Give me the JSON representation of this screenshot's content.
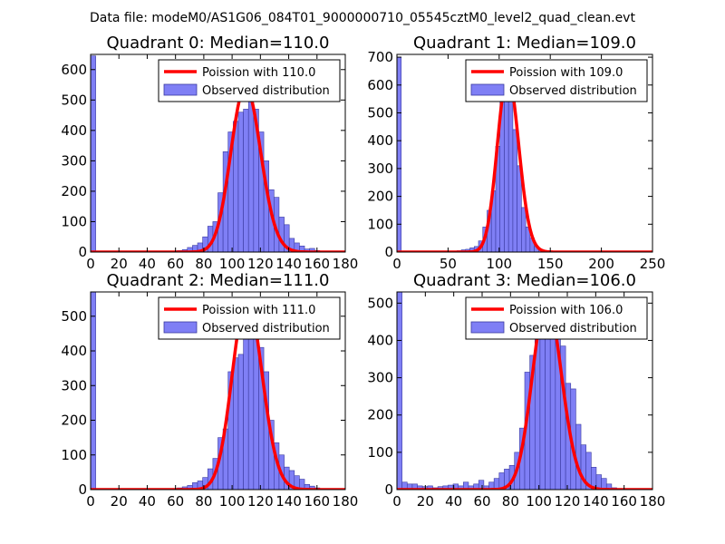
{
  "suptitle": "Data file: modeM0/AS1G06_084T01_9000000710_05545cztM0_level2_quad_clean.evt",
  "colors": {
    "bar": "#7f7ff5",
    "bar_edge": "#3a3aa0",
    "curve": "#ff0000",
    "axes": "#000000"
  },
  "chart_data": [
    {
      "type": "bar+line",
      "title": "Quadrant 0: Median=110.0",
      "median": 110.0,
      "xlim": [
        0,
        180
      ],
      "ylim": [
        0,
        650
      ],
      "xticks": [
        0,
        20,
        40,
        60,
        80,
        100,
        120,
        140,
        160,
        180
      ],
      "yticks": [
        0,
        100,
        200,
        300,
        400,
        500,
        600
      ],
      "bin_width": 3.6,
      "bins_x": [
        0,
        61.2,
        64.8,
        68.4,
        72,
        75.6,
        79.2,
        82.8,
        86.4,
        90,
        93.6,
        97.2,
        100.8,
        104.4,
        108,
        111.6,
        115.2,
        118.8,
        122.4,
        126,
        129.6,
        133.2,
        136.8,
        140.4,
        144,
        147.6,
        151.2,
        154.8,
        158.4,
        162
      ],
      "counts": [
        645,
        5,
        8,
        15,
        22,
        30,
        50,
        85,
        100,
        195,
        330,
        395,
        430,
        460,
        470,
        560,
        470,
        395,
        300,
        205,
        180,
        115,
        90,
        45,
        30,
        20,
        10,
        12,
        5,
        3
      ],
      "poisson_peak": 545,
      "legend": {
        "line": "Poission with 110.0",
        "bars": "Observed distribution"
      }
    },
    {
      "type": "bar+line",
      "title": "Quadrant 1: Median=109.0",
      "median": 109.0,
      "xlim": [
        0,
        250
      ],
      "ylim": [
        0,
        710
      ],
      "xticks": [
        0,
        50,
        100,
        150,
        200,
        250
      ],
      "yticks": [
        0,
        100,
        200,
        300,
        400,
        500,
        600,
        700
      ],
      "bin_width": 4.2,
      "bins_x": [
        0,
        58.8,
        63,
        67.2,
        71.4,
        75.6,
        79.8,
        84,
        88.2,
        92.4,
        96.6,
        100.8,
        105,
        109.2,
        113.4,
        117.6,
        121.8,
        126,
        130.2,
        134.4,
        138.6,
        142.8,
        147
      ],
      "counts": [
        700,
        5,
        8,
        10,
        15,
        20,
        40,
        90,
        150,
        220,
        380,
        590,
        610,
        545,
        440,
        310,
        160,
        90,
        50,
        20,
        10,
        5,
        3
      ],
      "poisson_peak": 635,
      "legend": {
        "line": "Poission with 109.0",
        "bars": "Observed distribution"
      }
    },
    {
      "type": "bar+line",
      "title": "Quadrant 2: Median=111.0",
      "median": 111.0,
      "xlim": [
        0,
        180
      ],
      "ylim": [
        0,
        570
      ],
      "xticks": [
        0,
        20,
        40,
        60,
        80,
        100,
        120,
        140,
        160,
        180
      ],
      "yticks": [
        0,
        100,
        200,
        300,
        400,
        500
      ],
      "bin_width": 3.6,
      "bins_x": [
        0,
        61.2,
        64.8,
        68.4,
        72,
        75.6,
        79.2,
        82.8,
        86.4,
        90,
        93.6,
        97.2,
        100.8,
        104.4,
        108,
        111.6,
        115.2,
        118.8,
        122.4,
        126,
        129.6,
        133.2,
        136.8,
        140.4,
        144,
        147.6,
        151.2,
        154.8,
        158.4
      ],
      "counts": [
        570,
        5,
        8,
        12,
        20,
        25,
        35,
        60,
        90,
        150,
        175,
        340,
        380,
        390,
        455,
        485,
        490,
        410,
        340,
        200,
        135,
        100,
        65,
        55,
        40,
        30,
        15,
        10,
        5
      ],
      "poisson_peak": 550,
      "legend": {
        "line": "Poission with 111.0",
        "bars": "Observed distribution"
      }
    },
    {
      "type": "bar+line",
      "title": "Quadrant 3: Median=106.0",
      "median": 106.0,
      "xlim": [
        0,
        180
      ],
      "ylim": [
        0,
        530
      ],
      "xticks": [
        0,
        20,
        40,
        60,
        80,
        100,
        120,
        140,
        160,
        180
      ],
      "yticks": [
        0,
        100,
        200,
        300,
        400,
        500
      ],
      "bin_width": 3.6,
      "bins_x": [
        0,
        3.6,
        7.2,
        10.8,
        14.4,
        18,
        21.6,
        25.2,
        28.8,
        32.4,
        36,
        39.6,
        43.2,
        46.8,
        50.4,
        54,
        57.6,
        61.2,
        64.8,
        68.4,
        72,
        75.6,
        79.2,
        82.8,
        86.4,
        90,
        93.6,
        97.2,
        100.8,
        104.4,
        108,
        111.6,
        115.2,
        118.8,
        122.4,
        126,
        129.6,
        133.2,
        136.8,
        140.4,
        144,
        147.6,
        151.2
      ],
      "counts": [
        530,
        20,
        15,
        15,
        10,
        8,
        10,
        5,
        8,
        10,
        12,
        15,
        10,
        20,
        10,
        15,
        25,
        10,
        20,
        30,
        45,
        55,
        65,
        100,
        165,
        315,
        360,
        410,
        465,
        500,
        475,
        465,
        385,
        285,
        270,
        175,
        120,
        100,
        60,
        40,
        30,
        15,
        5
      ],
      "poisson_peak": 505,
      "legend": {
        "line": "Poission with 106.0",
        "bars": "Observed distribution"
      }
    }
  ]
}
